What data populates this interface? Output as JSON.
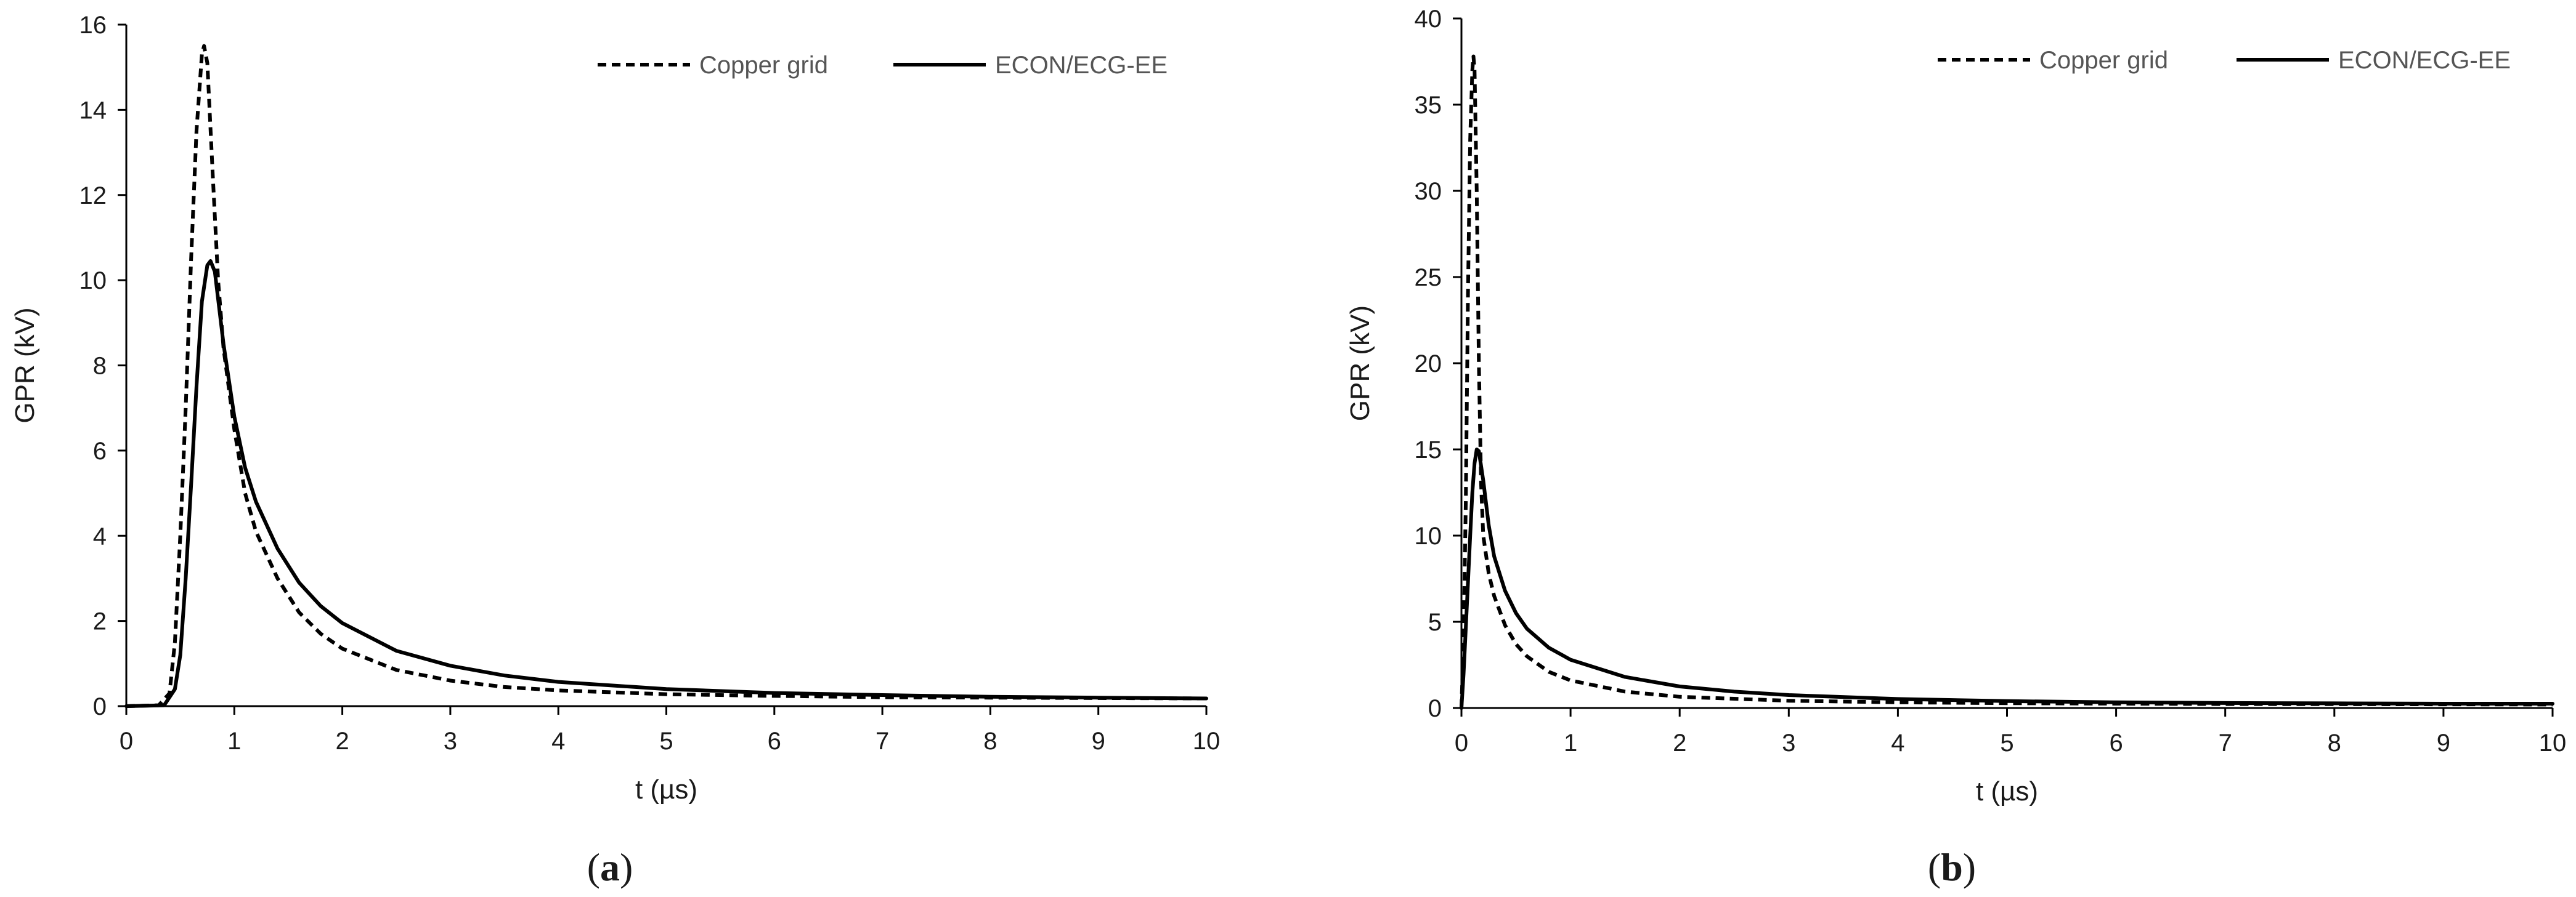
{
  "chart_data": [
    {
      "type": "line",
      "panel_label": "a",
      "xlabel": "t (µs)",
      "ylabel": "GPR (kV)",
      "xlim": [
        0,
        10
      ],
      "ylim": [
        0,
        16
      ],
      "x_ticks": [
        0,
        1,
        2,
        3,
        4,
        5,
        6,
        7,
        8,
        9,
        10
      ],
      "y_ticks": [
        0,
        2,
        4,
        6,
        8,
        10,
        12,
        14,
        16
      ],
      "grid": false,
      "legend_position": "top-right",
      "series": [
        {
          "name": "Copper grid",
          "style": "dashed",
          "color": "#000000",
          "points": [
            [
              0,
              0
            ],
            [
              0.3,
              0.02
            ],
            [
              0.4,
              0.3
            ],
            [
              0.45,
              1.5
            ],
            [
              0.5,
              4
            ],
            [
              0.55,
              7
            ],
            [
              0.6,
              10.5
            ],
            [
              0.65,
              13.5
            ],
            [
              0.7,
              15.3
            ],
            [
              0.72,
              15.5
            ],
            [
              0.75,
              15.1
            ],
            [
              0.8,
              12.5
            ],
            [
              0.85,
              10
            ],
            [
              0.9,
              8.4
            ],
            [
              1.0,
              6.5
            ],
            [
              1.1,
              5.0
            ],
            [
              1.2,
              4.1
            ],
            [
              1.4,
              3.0
            ],
            [
              1.6,
              2.2
            ],
            [
              1.8,
              1.7
            ],
            [
              2.0,
              1.35
            ],
            [
              2.5,
              0.85
            ],
            [
              3.0,
              0.6
            ],
            [
              3.5,
              0.45
            ],
            [
              4,
              0.37
            ],
            [
              5,
              0.28
            ],
            [
              6,
              0.24
            ],
            [
              7,
              0.21
            ],
            [
              8,
              0.2
            ],
            [
              9,
              0.19
            ],
            [
              10,
              0.18
            ]
          ]
        },
        {
          "name": "ECON/ECG-EE",
          "style": "solid",
          "color": "#000000",
          "points": [
            [
              0,
              0
            ],
            [
              0.35,
              0.02
            ],
            [
              0.45,
              0.4
            ],
            [
              0.5,
              1.2
            ],
            [
              0.55,
              3
            ],
            [
              0.6,
              5.2
            ],
            [
              0.65,
              7.5
            ],
            [
              0.7,
              9.5
            ],
            [
              0.75,
              10.35
            ],
            [
              0.78,
              10.45
            ],
            [
              0.82,
              10.2
            ],
            [
              0.9,
              8.5
            ],
            [
              1.0,
              6.8
            ],
            [
              1.1,
              5.6
            ],
            [
              1.2,
              4.8
            ],
            [
              1.4,
              3.7
            ],
            [
              1.6,
              2.9
            ],
            [
              1.8,
              2.35
            ],
            [
              2.0,
              1.95
            ],
            [
              2.5,
              1.3
            ],
            [
              3.0,
              0.95
            ],
            [
              3.5,
              0.72
            ],
            [
              4,
              0.57
            ],
            [
              5,
              0.4
            ],
            [
              6,
              0.31
            ],
            [
              7,
              0.26
            ],
            [
              8,
              0.22
            ],
            [
              9,
              0.2
            ],
            [
              10,
              0.18
            ]
          ]
        }
      ]
    },
    {
      "type": "line",
      "panel_label": "b",
      "xlabel": "t (µs)",
      "ylabel": "GPR (kV)",
      "xlim": [
        0,
        10
      ],
      "ylim": [
        0,
        40
      ],
      "x_ticks": [
        0,
        1,
        2,
        3,
        4,
        5,
        6,
        7,
        8,
        9,
        10
      ],
      "y_ticks": [
        0,
        5,
        10,
        15,
        20,
        25,
        30,
        35,
        40
      ],
      "grid": false,
      "legend_position": "top-right",
      "series": [
        {
          "name": "Copper grid",
          "style": "dashed",
          "color": "#000000",
          "points": [
            [
              0,
              0
            ],
            [
              0.02,
              4
            ],
            [
              0.04,
              12
            ],
            [
              0.06,
              24
            ],
            [
              0.08,
              33
            ],
            [
              0.1,
              37
            ],
            [
              0.11,
              37.8
            ],
            [
              0.12,
              37
            ],
            [
              0.14,
              30
            ],
            [
              0.16,
              20
            ],
            [
              0.18,
              13
            ],
            [
              0.2,
              10
            ],
            [
              0.25,
              7.8
            ],
            [
              0.3,
              6.5
            ],
            [
              0.4,
              4.8
            ],
            [
              0.5,
              3.7
            ],
            [
              0.6,
              3.0
            ],
            [
              0.8,
              2.1
            ],
            [
              1.0,
              1.6
            ],
            [
              1.5,
              0.95
            ],
            [
              2.0,
              0.65
            ],
            [
              3,
              0.42
            ],
            [
              4,
              0.33
            ],
            [
              5,
              0.28
            ],
            [
              6,
              0.25
            ],
            [
              7,
              0.23
            ],
            [
              8,
              0.22
            ],
            [
              9,
              0.21
            ],
            [
              10,
              0.2
            ]
          ]
        },
        {
          "name": "ECON/ECG-EE",
          "style": "solid",
          "color": "#000000",
          "points": [
            [
              0,
              0
            ],
            [
              0.02,
              2
            ],
            [
              0.05,
              6
            ],
            [
              0.08,
              10
            ],
            [
              0.1,
              12.5
            ],
            [
              0.12,
              14.2
            ],
            [
              0.14,
              15.0
            ],
            [
              0.16,
              14.9
            ],
            [
              0.2,
              13.2
            ],
            [
              0.25,
              10.6
            ],
            [
              0.3,
              8.8
            ],
            [
              0.4,
              6.8
            ],
            [
              0.5,
              5.5
            ],
            [
              0.6,
              4.6
            ],
            [
              0.8,
              3.5
            ],
            [
              1.0,
              2.8
            ],
            [
              1.5,
              1.8
            ],
            [
              2.0,
              1.25
            ],
            [
              2.5,
              0.95
            ],
            [
              3,
              0.75
            ],
            [
              4,
              0.52
            ],
            [
              5,
              0.4
            ],
            [
              6,
              0.33
            ],
            [
              7,
              0.29
            ],
            [
              8,
              0.27
            ],
            [
              9,
              0.25
            ],
            [
              10,
              0.25
            ]
          ]
        }
      ]
    }
  ]
}
